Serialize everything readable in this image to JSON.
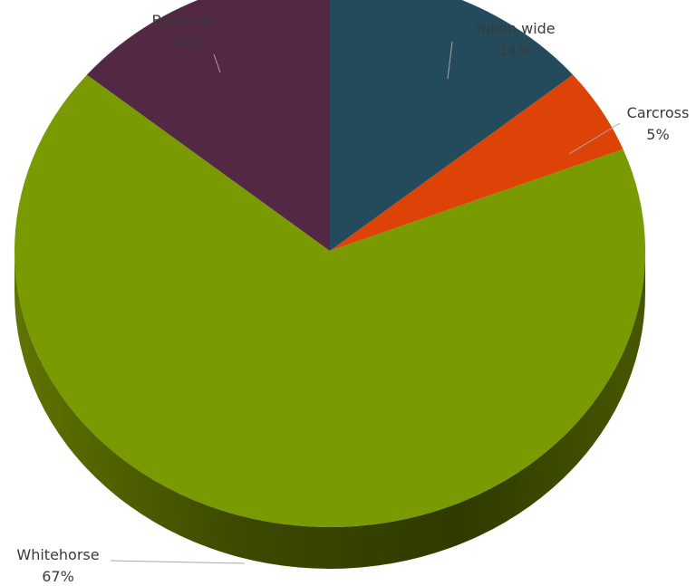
{
  "chart_data": {
    "type": "pie",
    "style": "3d",
    "categories": [
      "Yukon wide",
      "Carcross",
      "Whitehorse",
      "Burwash"
    ],
    "values": [
      14,
      5,
      67,
      14
    ],
    "value_labels": [
      "14%",
      "5%",
      "67%",
      "14%"
    ],
    "colors": [
      "#234B5C",
      "#DD4206",
      "#7A9A01",
      "#532844"
    ],
    "legend": "none"
  }
}
